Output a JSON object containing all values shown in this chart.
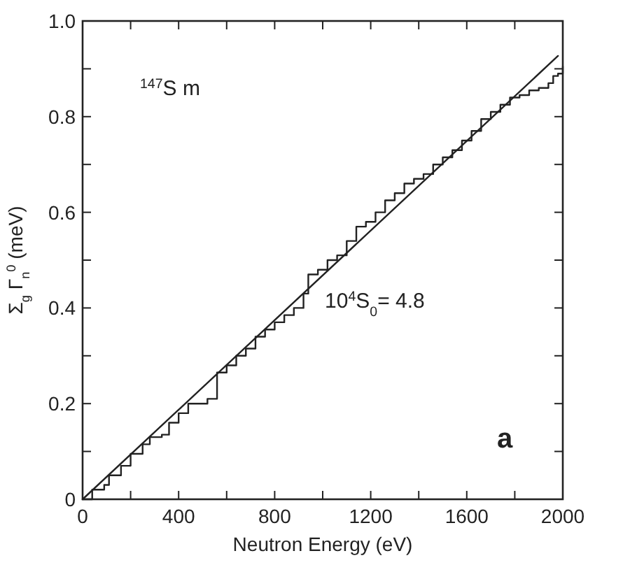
{
  "chart_data": {
    "type": "line",
    "xlabel": "Neutron Energy (eV)",
    "ylabel": "Σ$_{g}$ Γ$_{n}$$^{0}$ (meV)",
    "annotations": [
      "$^{147}$S m",
      "10$^{4}$S$_{0}$= 4.8",
      "a"
    ],
    "xlim": [
      0,
      2000
    ],
    "ylim": [
      0,
      1.0
    ],
    "xticks": [
      0,
      {
        "value": 200,
        "label": null
      },
      400,
      {
        "value": 600,
        "label": null
      },
      800,
      {
        "value": 1000,
        "label": null
      },
      1200,
      {
        "value": 1400,
        "label": null
      },
      1600,
      {
        "value": 1800,
        "label": null
      },
      2000
    ],
    "yticks": [
      0,
      {
        "value": 0.1,
        "label": null
      },
      0.2,
      {
        "value": 0.3,
        "label": null
      },
      0.4,
      {
        "value": 0.5,
        "label": null
      },
      0.6,
      {
        "value": 0.7,
        "label": null
      },
      0.8,
      {
        "value": 0.9,
        "label": null
      },
      {
        "value": 1.0,
        "label": "1.0"
      }
    ],
    "grid": false,
    "marker": "none",
    "line_style": "solid",
    "series": [
      {
        "type": "step",
        "color": "#222222",
        "x": [
          0,
          40,
          90,
          110,
          160,
          200,
          250,
          280,
          330,
          360,
          400,
          440,
          520,
          560,
          600,
          640,
          680,
          720,
          760,
          800,
          840,
          880,
          920,
          940,
          980,
          1020,
          1060,
          1100,
          1140,
          1180,
          1220,
          1260,
          1300,
          1340,
          1380,
          1420,
          1460,
          1500,
          1540,
          1580,
          1620,
          1660,
          1700,
          1740,
          1780,
          1820,
          1860,
          1900,
          1940,
          1960,
          1980,
          2000
        ],
        "values": [
          0,
          0.02,
          0.03,
          0.05,
          0.07,
          0.095,
          0.115,
          0.13,
          0.135,
          0.16,
          0.18,
          0.2,
          0.21,
          0.265,
          0.28,
          0.3,
          0.315,
          0.34,
          0.355,
          0.37,
          0.385,
          0.4,
          0.43,
          0.47,
          0.48,
          0.5,
          0.51,
          0.54,
          0.57,
          0.58,
          0.6,
          0.625,
          0.64,
          0.66,
          0.67,
          0.68,
          0.7,
          0.715,
          0.73,
          0.75,
          0.77,
          0.795,
          0.81,
          0.825,
          0.84,
          0.845,
          0.855,
          0.86,
          0.87,
          0.885,
          0.89,
          0.905
        ]
      },
      {
        "type": "line",
        "color": "#222222",
        "x": [
          0,
          1980
        ],
        "values": [
          0,
          0.927
        ]
      }
    ]
  }
}
